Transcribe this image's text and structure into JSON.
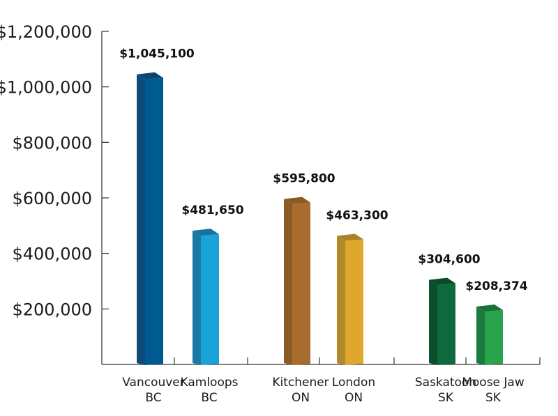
{
  "chart_data": {
    "type": "bar",
    "categories": [
      [
        "Vancouver",
        "BC"
      ],
      [
        "Kamloops",
        "BC"
      ],
      [
        "Kitchener",
        "ON"
      ],
      [
        "London",
        "ON"
      ],
      [
        "Saskatoon",
        "SK"
      ],
      [
        "Moose Jaw",
        "SK"
      ]
    ],
    "values": [
      1045100,
      481650,
      595800,
      463300,
      304600,
      208374
    ],
    "data_labels": [
      "$1,045,100",
      "$481,650",
      "$595,800",
      "$463,300",
      "$304,600",
      "$208,374"
    ],
    "y_ticks": [
      200000,
      400000,
      600000,
      800000,
      1000000,
      1200000
    ],
    "y_tick_labels": [
      "$200,000",
      "$400,000",
      "$600,000",
      "$800,000",
      "$1,000,000",
      "$1,200,000"
    ],
    "ylim": [
      0,
      1200000
    ],
    "grid": false,
    "legend": "none",
    "colors": [
      {
        "side": "#0d4a78",
        "front": "#005a92",
        "top": "#0a4674"
      },
      {
        "side": "#1a7aa5",
        "front": "#1aa3d6",
        "top": "#17739c"
      },
      {
        "side": "#8c5a24",
        "front": "#a86c2c",
        "top": "#8a5a22"
      },
      {
        "side": "#b08a2a",
        "front": "#e0a72e",
        "top": "#a98328"
      },
      {
        "side": "#0b4f2e",
        "front": "#0e6a3c",
        "top": "#0a4a2b"
      },
      {
        "side": "#1a7a40",
        "front": "#2aa34d",
        "top": "#18703c"
      }
    ]
  }
}
